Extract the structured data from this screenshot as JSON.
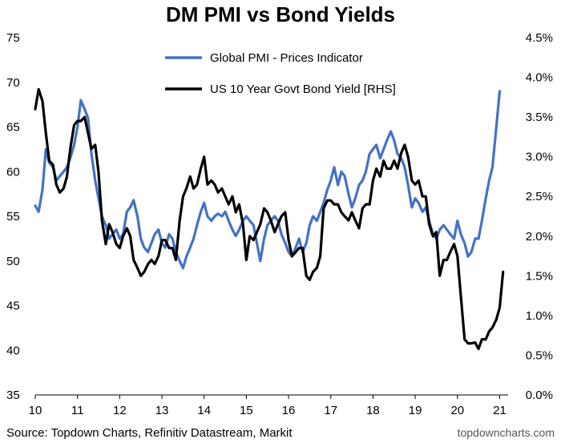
{
  "chart_data": {
    "type": "line",
    "title": "DM PMI vs Bond Yields",
    "xlabel": "",
    "ylabel": "",
    "x_ticks": [
      "10",
      "11",
      "12",
      "13",
      "14",
      "15",
      "16",
      "17",
      "18",
      "19",
      "20",
      "21"
    ],
    "x_range": [
      2010,
      2021.2
    ],
    "y_left": {
      "range": [
        35,
        75
      ],
      "ticks": [
        "35",
        "40",
        "45",
        "50",
        "55",
        "60",
        "65",
        "70",
        "75"
      ]
    },
    "y_right": {
      "range": [
        0,
        4.5
      ],
      "ticks": [
        "0.0%",
        "0.5%",
        "1.0%",
        "1.5%",
        "2.0%",
        "2.5%",
        "3.0%",
        "3.5%",
        "4.0%",
        "4.5%"
      ]
    },
    "grid": false,
    "legend": "top-center",
    "series": [
      {
        "name": "Global PMI - Prices Indicator",
        "axis": "left",
        "color": "#4472C4",
        "points": [
          [
            2010.0,
            56.2
          ],
          [
            2010.08,
            55.5
          ],
          [
            2010.17,
            58.0
          ],
          [
            2010.25,
            62.5
          ],
          [
            2010.33,
            61.0
          ],
          [
            2010.42,
            60.5
          ],
          [
            2010.5,
            59.0
          ],
          [
            2010.58,
            59.5
          ],
          [
            2010.67,
            60.0
          ],
          [
            2010.75,
            60.5
          ],
          [
            2010.83,
            61.5
          ],
          [
            2010.92,
            63.0
          ],
          [
            2011.0,
            65.0
          ],
          [
            2011.08,
            68.0
          ],
          [
            2011.17,
            67.0
          ],
          [
            2011.25,
            66.0
          ],
          [
            2011.33,
            62.0
          ],
          [
            2011.42,
            59.0
          ],
          [
            2011.5,
            57.0
          ],
          [
            2011.58,
            55.0
          ],
          [
            2011.67,
            54.0
          ],
          [
            2011.75,
            52.5
          ],
          [
            2011.83,
            53.0
          ],
          [
            2011.92,
            53.5
          ],
          [
            2012.0,
            52.5
          ],
          [
            2012.08,
            53.0
          ],
          [
            2012.17,
            55.5
          ],
          [
            2012.25,
            56.0
          ],
          [
            2012.33,
            56.8
          ],
          [
            2012.42,
            55.0
          ],
          [
            2012.5,
            52.5
          ],
          [
            2012.58,
            51.5
          ],
          [
            2012.67,
            51.0
          ],
          [
            2012.75,
            52.0
          ],
          [
            2012.83,
            53.0
          ],
          [
            2012.92,
            53.5
          ],
          [
            2013.0,
            52.0
          ],
          [
            2013.08,
            51.5
          ],
          [
            2013.17,
            53.0
          ],
          [
            2013.25,
            52.5
          ],
          [
            2013.33,
            51.0
          ],
          [
            2013.42,
            50.0
          ],
          [
            2013.5,
            49.2
          ],
          [
            2013.58,
            50.5
          ],
          [
            2013.67,
            51.5
          ],
          [
            2013.75,
            52.5
          ],
          [
            2013.83,
            54.0
          ],
          [
            2013.92,
            55.5
          ],
          [
            2014.0,
            56.5
          ],
          [
            2014.08,
            55.0
          ],
          [
            2014.17,
            54.5
          ],
          [
            2014.25,
            55.0
          ],
          [
            2014.33,
            55.3
          ],
          [
            2014.42,
            55.0
          ],
          [
            2014.5,
            55.5
          ],
          [
            2014.58,
            54.5
          ],
          [
            2014.67,
            53.5
          ],
          [
            2014.75,
            52.8
          ],
          [
            2014.83,
            53.5
          ],
          [
            2014.92,
            54.5
          ],
          [
            2015.0,
            55.0
          ],
          [
            2015.08,
            54.5
          ],
          [
            2015.17,
            54.0
          ],
          [
            2015.25,
            52.0
          ],
          [
            2015.33,
            50.0
          ],
          [
            2015.42,
            52.5
          ],
          [
            2015.5,
            54.0
          ],
          [
            2015.58,
            54.5
          ],
          [
            2015.67,
            55.0
          ],
          [
            2015.75,
            54.5
          ],
          [
            2015.83,
            53.0
          ],
          [
            2015.92,
            52.0
          ],
          [
            2016.0,
            51.0
          ],
          [
            2016.08,
            50.5
          ],
          [
            2016.17,
            51.5
          ],
          [
            2016.25,
            52.5
          ],
          [
            2016.33,
            51.0
          ],
          [
            2016.42,
            52.0
          ],
          [
            2016.5,
            54.0
          ],
          [
            2016.58,
            55.0
          ],
          [
            2016.67,
            54.5
          ],
          [
            2016.75,
            55.5
          ],
          [
            2016.83,
            56.5
          ],
          [
            2016.92,
            58.0
          ],
          [
            2017.0,
            59.0
          ],
          [
            2017.08,
            60.5
          ],
          [
            2017.17,
            58.5
          ],
          [
            2017.25,
            60.0
          ],
          [
            2017.33,
            59.5
          ],
          [
            2017.42,
            57.5
          ],
          [
            2017.5,
            56.0
          ],
          [
            2017.58,
            57.0
          ],
          [
            2017.67,
            58.5
          ],
          [
            2017.75,
            59.0
          ],
          [
            2017.83,
            60.0
          ],
          [
            2017.92,
            62.0
          ],
          [
            2018.0,
            62.5
          ],
          [
            2018.08,
            63.0
          ],
          [
            2018.17,
            61.5
          ],
          [
            2018.25,
            62.5
          ],
          [
            2018.33,
            63.5
          ],
          [
            2018.42,
            64.5
          ],
          [
            2018.5,
            63.5
          ],
          [
            2018.58,
            62.0
          ],
          [
            2018.67,
            61.5
          ],
          [
            2018.75,
            60.5
          ],
          [
            2018.83,
            58.5
          ],
          [
            2018.92,
            56.0
          ],
          [
            2019.0,
            57.0
          ],
          [
            2019.08,
            56.5
          ],
          [
            2019.17,
            55.5
          ],
          [
            2019.25,
            56.0
          ],
          [
            2019.33,
            54.5
          ],
          [
            2019.42,
            53.0
          ],
          [
            2019.5,
            52.5
          ],
          [
            2019.58,
            53.5
          ],
          [
            2019.67,
            54.0
          ],
          [
            2019.75,
            53.5
          ],
          [
            2019.83,
            53.0
          ],
          [
            2019.92,
            52.5
          ],
          [
            2020.0,
            54.5
          ],
          [
            2020.08,
            53.0
          ],
          [
            2020.17,
            52.0
          ],
          [
            2020.25,
            50.5
          ],
          [
            2020.33,
            51.0
          ],
          [
            2020.42,
            52.5
          ],
          [
            2020.5,
            52.5
          ],
          [
            2020.58,
            54.5
          ],
          [
            2020.67,
            57.0
          ],
          [
            2020.75,
            59.0
          ],
          [
            2020.83,
            60.5
          ],
          [
            2020.92,
            65.0
          ],
          [
            2021.0,
            69.0
          ]
        ]
      },
      {
        "name": "US 10 Year Govt Bond Yield [RHS]",
        "axis": "right",
        "color": "#000000",
        "points": [
          [
            2010.0,
            3.6
          ],
          [
            2010.08,
            3.85
          ],
          [
            2010.17,
            3.7
          ],
          [
            2010.25,
            3.3
          ],
          [
            2010.33,
            2.95
          ],
          [
            2010.42,
            2.9
          ],
          [
            2010.5,
            2.65
          ],
          [
            2010.58,
            2.55
          ],
          [
            2010.67,
            2.6
          ],
          [
            2010.75,
            2.75
          ],
          [
            2010.83,
            3.1
          ],
          [
            2010.92,
            3.4
          ],
          [
            2011.0,
            3.45
          ],
          [
            2011.08,
            3.45
          ],
          [
            2011.17,
            3.5
          ],
          [
            2011.25,
            3.3
          ],
          [
            2011.33,
            3.1
          ],
          [
            2011.42,
            3.15
          ],
          [
            2011.5,
            2.8
          ],
          [
            2011.58,
            2.2
          ],
          [
            2011.67,
            1.9
          ],
          [
            2011.75,
            2.15
          ],
          [
            2011.83,
            2.05
          ],
          [
            2011.92,
            1.9
          ],
          [
            2012.0,
            1.85
          ],
          [
            2012.08,
            2.0
          ],
          [
            2012.17,
            2.1
          ],
          [
            2012.25,
            2.0
          ],
          [
            2012.33,
            1.7
          ],
          [
            2012.42,
            1.6
          ],
          [
            2012.5,
            1.5
          ],
          [
            2012.58,
            1.55
          ],
          [
            2012.67,
            1.65
          ],
          [
            2012.75,
            1.7
          ],
          [
            2012.83,
            1.65
          ],
          [
            2012.92,
            1.75
          ],
          [
            2013.0,
            1.95
          ],
          [
            2013.08,
            1.95
          ],
          [
            2013.17,
            1.85
          ],
          [
            2013.25,
            1.85
          ],
          [
            2013.33,
            1.7
          ],
          [
            2013.42,
            2.2
          ],
          [
            2013.5,
            2.5
          ],
          [
            2013.58,
            2.6
          ],
          [
            2013.67,
            2.75
          ],
          [
            2013.75,
            2.6
          ],
          [
            2013.83,
            2.65
          ],
          [
            2013.92,
            2.85
          ],
          [
            2014.0,
            3.0
          ],
          [
            2014.08,
            2.65
          ],
          [
            2014.17,
            2.7
          ],
          [
            2014.25,
            2.65
          ],
          [
            2014.33,
            2.55
          ],
          [
            2014.42,
            2.6
          ],
          [
            2014.5,
            2.5
          ],
          [
            2014.58,
            2.4
          ],
          [
            2014.67,
            2.5
          ],
          [
            2014.75,
            2.3
          ],
          [
            2014.83,
            2.4
          ],
          [
            2014.92,
            2.15
          ],
          [
            2015.0,
            1.7
          ],
          [
            2015.08,
            2.0
          ],
          [
            2015.17,
            1.95
          ],
          [
            2015.25,
            2.05
          ],
          [
            2015.33,
            2.15
          ],
          [
            2015.42,
            2.35
          ],
          [
            2015.5,
            2.3
          ],
          [
            2015.58,
            2.2
          ],
          [
            2015.67,
            2.05
          ],
          [
            2015.75,
            2.15
          ],
          [
            2015.83,
            2.25
          ],
          [
            2015.92,
            2.3
          ],
          [
            2016.0,
            1.95
          ],
          [
            2016.08,
            1.75
          ],
          [
            2016.17,
            1.8
          ],
          [
            2016.25,
            1.85
          ],
          [
            2016.33,
            1.85
          ],
          [
            2016.42,
            1.5
          ],
          [
            2016.5,
            1.45
          ],
          [
            2016.58,
            1.55
          ],
          [
            2016.67,
            1.6
          ],
          [
            2016.75,
            1.75
          ],
          [
            2016.83,
            2.35
          ],
          [
            2016.92,
            2.45
          ],
          [
            2017.0,
            2.45
          ],
          [
            2017.08,
            2.4
          ],
          [
            2017.17,
            2.4
          ],
          [
            2017.25,
            2.3
          ],
          [
            2017.33,
            2.25
          ],
          [
            2017.42,
            2.2
          ],
          [
            2017.5,
            2.3
          ],
          [
            2017.58,
            2.2
          ],
          [
            2017.67,
            2.1
          ],
          [
            2017.75,
            2.35
          ],
          [
            2017.83,
            2.4
          ],
          [
            2017.92,
            2.4
          ],
          [
            2018.0,
            2.7
          ],
          [
            2018.08,
            2.85
          ],
          [
            2018.17,
            2.75
          ],
          [
            2018.25,
            2.95
          ],
          [
            2018.33,
            2.85
          ],
          [
            2018.42,
            2.85
          ],
          [
            2018.5,
            2.95
          ],
          [
            2018.58,
            2.85
          ],
          [
            2018.67,
            3.05
          ],
          [
            2018.75,
            3.15
          ],
          [
            2018.83,
            3.0
          ],
          [
            2018.92,
            2.7
          ],
          [
            2019.0,
            2.65
          ],
          [
            2019.08,
            2.7
          ],
          [
            2019.17,
            2.5
          ],
          [
            2019.25,
            2.5
          ],
          [
            2019.33,
            2.15
          ],
          [
            2019.42,
            2.0
          ],
          [
            2019.5,
            2.05
          ],
          [
            2019.58,
            1.5
          ],
          [
            2019.67,
            1.7
          ],
          [
            2019.75,
            1.7
          ],
          [
            2019.83,
            1.8
          ],
          [
            2019.92,
            1.9
          ],
          [
            2020.0,
            1.75
          ],
          [
            2020.08,
            1.25
          ],
          [
            2020.17,
            0.7
          ],
          [
            2020.25,
            0.65
          ],
          [
            2020.33,
            0.65
          ],
          [
            2020.42,
            0.66
          ],
          [
            2020.5,
            0.58
          ],
          [
            2020.58,
            0.7
          ],
          [
            2020.67,
            0.7
          ],
          [
            2020.75,
            0.8
          ],
          [
            2020.83,
            0.85
          ],
          [
            2020.92,
            0.95
          ],
          [
            2021.0,
            1.1
          ],
          [
            2021.08,
            1.55
          ]
        ]
      }
    ]
  },
  "footer": {
    "source": "Source: Topdown Charts, Refinitiv Datastream, Markit",
    "site": "topdowncharts.com"
  }
}
